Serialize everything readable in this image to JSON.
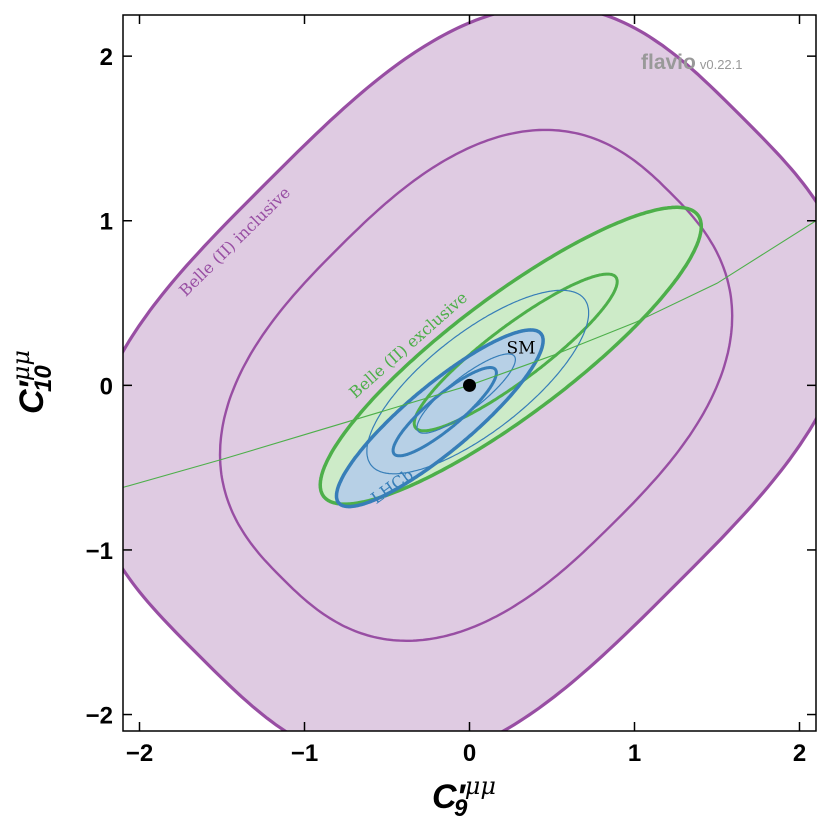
{
  "chart_data": {
    "type": "contour",
    "xlabel": {
      "var": "C",
      "prime": "′",
      "sub": "9",
      "sup": "μμ"
    },
    "ylabel": {
      "var": "C",
      "prime": "′",
      "sub": "10",
      "sup": "μμ"
    },
    "xlim": [
      -2.1,
      2.1
    ],
    "ylim": [
      -2.1,
      2.25
    ],
    "xticks": [
      -2,
      -1,
      0,
      1,
      2
    ],
    "yticks": [
      -2,
      -1,
      0,
      1,
      2
    ],
    "xtick_labels": [
      "−2",
      "−1",
      "0",
      "1",
      "2"
    ],
    "ytick_labels": [
      "−2",
      "−1",
      "0",
      "1",
      "2"
    ],
    "grid": false,
    "watermark": {
      "name": "flavio",
      "version": "v0.22.1"
    },
    "colors": {
      "purple_line": "#984ea3",
      "purple_fill": "#dfcbe2",
      "green_line": "#4daf4a",
      "green_fill": "#cdebc8",
      "blue_line": "#377eb8",
      "blue_fill": "#b7d0e6",
      "green_curve": "#4daf4a"
    },
    "regions": [
      {
        "name": "Belle (II) inclusive",
        "label_color": "#984ea3",
        "contours": [
          {
            "level": "outer",
            "shape": "superellipse",
            "cx": 0.0,
            "cy": 0.0,
            "a": 2.32,
            "b": 1.74,
            "angle_deg": 45,
            "exponent": 3.1,
            "filled": true,
            "width": 3.2
          },
          {
            "level": "inner",
            "shape": "superellipse",
            "cx": 0.04,
            "cy": 0.0,
            "a": 1.66,
            "b": 1.18,
            "angle_deg": 45,
            "exponent": 2.6,
            "filled": false,
            "width": 2.4
          }
        ]
      },
      {
        "name": "Belle (II) exclusive",
        "label_color": "#4daf4a",
        "contours": [
          {
            "level": "outer",
            "cx": 0.25,
            "cy": 0.18,
            "a": 1.42,
            "b": 0.36,
            "angle_deg": 37,
            "filled": true,
            "width": 3.5
          },
          {
            "level": "inner",
            "cx": 0.28,
            "cy": 0.2,
            "a": 0.76,
            "b": 0.165,
            "angle_deg": 37,
            "filled": false,
            "width": 3
          }
        ]
      },
      {
        "name": "LHCb",
        "label_color": "#377eb8",
        "contours": [
          {
            "level": "outer",
            "cx": -0.18,
            "cy": -0.2,
            "a": 0.8,
            "b": 0.2,
            "angle_deg": 40,
            "filled": true,
            "width": 3.5
          },
          {
            "level": "inner",
            "cx": -0.15,
            "cy": -0.16,
            "a": 0.4,
            "b": 0.1,
            "angle_deg": 40,
            "filled": false,
            "width": 3
          },
          {
            "level": "projection-outer",
            "cx": 0.05,
            "cy": 0.02,
            "a": 0.82,
            "b": 0.3,
            "angle_deg": 38,
            "filled": false,
            "width": 1.2
          },
          {
            "level": "projection-inner",
            "cx": -0.02,
            "cy": -0.05,
            "a": 0.37,
            "b": 0.1,
            "angle_deg": 38,
            "filled": false,
            "width": 1.2
          }
        ]
      }
    ],
    "curve": {
      "color": "#4daf4a",
      "x": [
        -2.1,
        -1.5,
        -1.0,
        -0.5,
        0.0,
        0.5,
        1.0,
        1.5,
        2.1
      ],
      "y": [
        -0.62,
        -0.45,
        -0.3,
        -0.15,
        0.0,
        0.18,
        0.38,
        0.62,
        1.0
      ]
    },
    "points": [
      {
        "name": "SM",
        "x": 0.0,
        "y": 0.0
      }
    ]
  }
}
